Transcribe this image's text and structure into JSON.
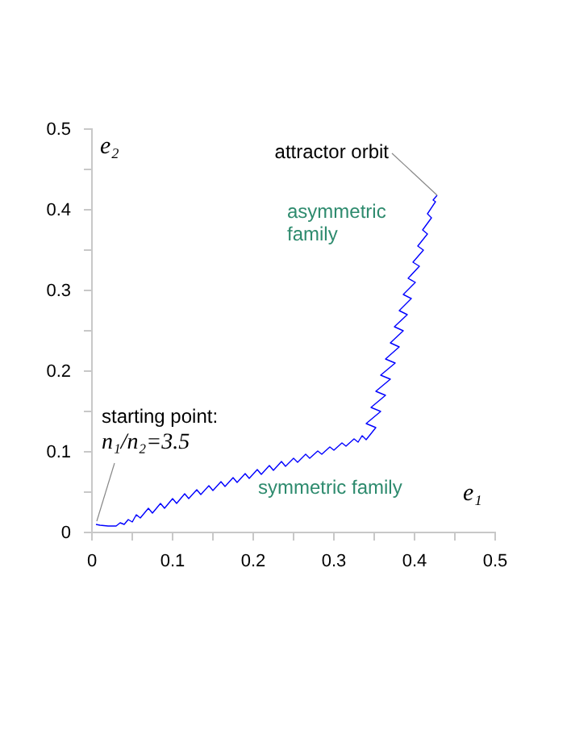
{
  "chart_data": {
    "type": "line",
    "xlabel": "e₁",
    "ylabel": "e₂",
    "xlim": [
      0,
      0.5
    ],
    "ylim": [
      0,
      0.5
    ],
    "xticks": [
      0,
      {
        "value": 0.05,
        "label": null
      },
      0.1,
      {
        "value": 0.15,
        "label": null
      },
      0.2,
      {
        "value": 0.25,
        "label": null
      },
      0.3,
      {
        "value": 0.35,
        "label": null
      },
      0.4,
      {
        "value": 0.45,
        "label": null
      },
      0.5
    ],
    "yticks": [
      0,
      {
        "value": 0.05,
        "label": null
      },
      0.1,
      {
        "value": 0.15,
        "label": null
      },
      0.2,
      {
        "value": 0.25,
        "label": null
      },
      0.3,
      {
        "value": 0.35,
        "label": null
      },
      0.4,
      {
        "value": 0.45,
        "label": null
      },
      0.5
    ],
    "grid": false,
    "marker": "none",
    "line_style": "solid",
    "series": [
      {
        "color": "#0000ff",
        "x": [
          0.005,
          0.01,
          0.02,
          0.03,
          0.035,
          0.04,
          0.045,
          0.05,
          0.055,
          0.06,
          0.07,
          0.075,
          0.085,
          0.09,
          0.1,
          0.105,
          0.115,
          0.12,
          0.13,
          0.135,
          0.145,
          0.15,
          0.16,
          0.165,
          0.175,
          0.18,
          0.19,
          0.195,
          0.205,
          0.21,
          0.22,
          0.225,
          0.235,
          0.24,
          0.25,
          0.255,
          0.265,
          0.27,
          0.28,
          0.285,
          0.295,
          0.3,
          0.31,
          0.315,
          0.325,
          0.33,
          0.335,
          0.34,
          0.352,
          0.34,
          0.358,
          0.346,
          0.364,
          0.352,
          0.37,
          0.358,
          0.376,
          0.364,
          0.381,
          0.37,
          0.386,
          0.375,
          0.391,
          0.381,
          0.396,
          0.386,
          0.401,
          0.392,
          0.406,
          0.398,
          0.411,
          0.404,
          0.416,
          0.41,
          0.421,
          0.416,
          0.426,
          0.423,
          0.428
        ],
        "values": [
          0.01,
          0.009,
          0.008,
          0.008,
          0.012,
          0.01,
          0.016,
          0.013,
          0.022,
          0.018,
          0.03,
          0.024,
          0.036,
          0.03,
          0.042,
          0.036,
          0.048,
          0.042,
          0.053,
          0.047,
          0.058,
          0.052,
          0.063,
          0.057,
          0.068,
          0.062,
          0.073,
          0.067,
          0.078,
          0.072,
          0.083,
          0.077,
          0.088,
          0.082,
          0.092,
          0.087,
          0.097,
          0.092,
          0.101,
          0.097,
          0.106,
          0.102,
          0.111,
          0.107,
          0.116,
          0.112,
          0.12,
          0.115,
          0.13,
          0.135,
          0.15,
          0.155,
          0.17,
          0.175,
          0.19,
          0.195,
          0.21,
          0.215,
          0.23,
          0.235,
          0.25,
          0.255,
          0.27,
          0.275,
          0.29,
          0.295,
          0.31,
          0.315,
          0.33,
          0.335,
          0.35,
          0.355,
          0.37,
          0.375,
          0.39,
          0.395,
          0.41,
          0.412,
          0.418
        ]
      }
    ],
    "annotations": [
      {
        "text": "attractor orbit",
        "x": 0.428,
        "y": 0.418
      },
      "asymmetric family",
      "symmetric family",
      {
        "text": "starting point: n₁/n₂=3.5",
        "x": 0.004,
        "y": 0.01
      }
    ]
  }
}
